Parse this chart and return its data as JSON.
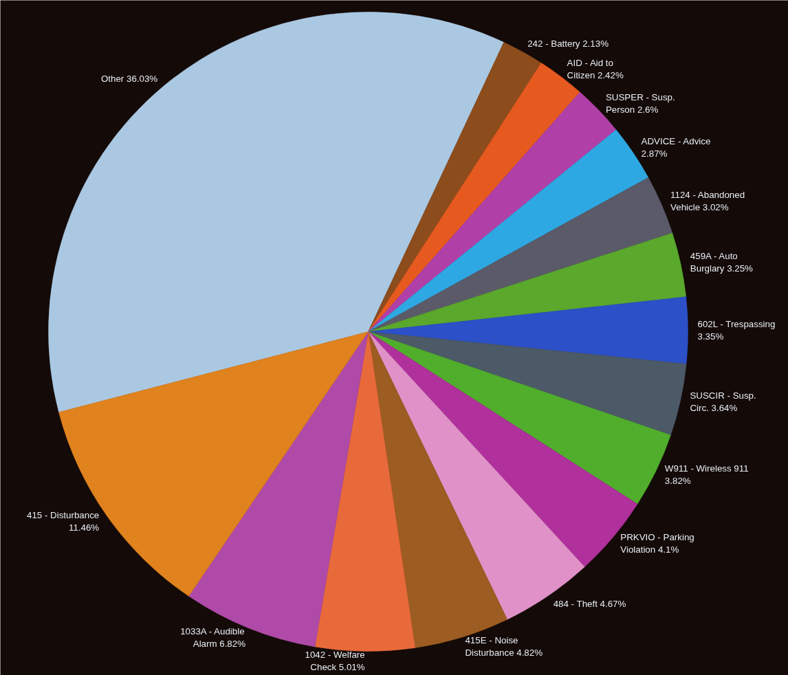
{
  "chart_data": {
    "type": "pie",
    "value_labels": [
      "36.03%",
      "2.13%",
      "2.42%",
      "2.6%",
      "2.87%",
      "3.02%",
      "3.25%",
      "3.35%",
      "3.64%",
      "3.82%",
      "4.1%",
      "4.67%",
      "4.82%",
      "5.01%",
      "6.82%",
      "11.46%"
    ],
    "categories": [
      "Other",
      "242 - Battery",
      "AID - Aid to Citizen",
      "SUSPER - Susp. Person",
      "ADVICE - Advice",
      "1124 - Abandoned Vehicle",
      "459A - Auto Burglary",
      "602L - Trespassing",
      "SUSCIR - Susp. Circ.",
      "W911 - Wireless 911",
      "PRKVIO - Parking Violation",
      "484 - Theft",
      "415E - Noise Disturbance",
      "1042 - Welfare Check",
      "1033A - Audible Alarm",
      "415 - Disturbance"
    ],
    "values": [
      36.03,
      2.13,
      2.42,
      2.6,
      2.87,
      3.02,
      3.25,
      3.35,
      3.64,
      3.82,
      4.1,
      4.67,
      4.82,
      5.01,
      6.82,
      11.46
    ],
    "colors": [
      "#aac8e2",
      "#8c4c1c",
      "#e65a20",
      "#b040a8",
      "#2ea8e2",
      "#5a5a68",
      "#5aa82c",
      "#2c50c8",
      "#4c5a68",
      "#50ae2c",
      "#b0309c",
      "#e092c8",
      "#9c5c22",
      "#e86a3a",
      "#b04aa8",
      "#e0821e"
    ]
  }
}
